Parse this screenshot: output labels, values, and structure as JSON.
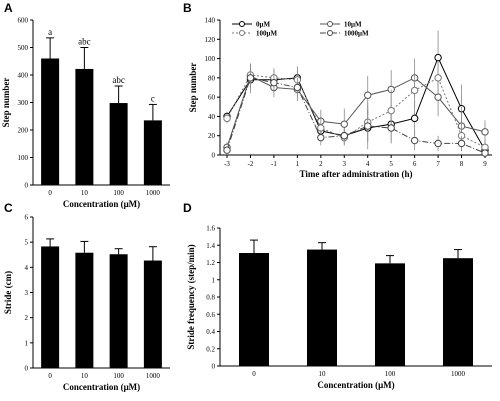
{
  "chart_data": [
    {
      "panel": "A",
      "type": "bar",
      "categories": [
        "0",
        "10",
        "100",
        "1000"
      ],
      "values": [
        460,
        422,
        298,
        235
      ],
      "errors": [
        75,
        78,
        62,
        58
      ],
      "annotations": [
        "a",
        "abc",
        "abc",
        "c"
      ],
      "xlabel": "Concentration (μM)",
      "ylabel": "Step number",
      "ylim": [
        0,
        600
      ],
      "yticks": [
        "0",
        "100",
        "200",
        "300",
        "400",
        "500",
        "600"
      ],
      "color": "#000000"
    },
    {
      "panel": "B",
      "type": "line",
      "x": [
        "-3",
        "-2",
        "-1",
        "1",
        "2",
        "3",
        "4",
        "5",
        "6",
        "7",
        "8",
        "9"
      ],
      "series": [
        {
          "name": "0μM",
          "style": "solid-circle",
          "values": [
            40,
            78,
            78,
            80,
            25,
            20,
            28,
            32,
            38,
            101,
            48,
            5
          ],
          "errors": [
            5,
            14,
            10,
            12,
            10,
            10,
            22,
            20,
            18,
            28,
            25,
            10
          ]
        },
        {
          "name": "10μM",
          "style": "solid-gray",
          "values": [
            8,
            82,
            70,
            68,
            35,
            32,
            62,
            68,
            80,
            60,
            30,
            24
          ],
          "errors": [
            5,
            12,
            10,
            12,
            12,
            16,
            20,
            20,
            20,
            20,
            20,
            12
          ]
        },
        {
          "name": "100μM",
          "style": "dotted",
          "values": [
            38,
            83,
            80,
            78,
            28,
            18,
            34,
            46,
            67,
            80,
            20,
            8
          ],
          "errors": [
            5,
            12,
            10,
            10,
            10,
            8,
            20,
            22,
            18,
            16,
            16,
            8
          ]
        },
        {
          "name": "1000μM",
          "style": "dash-dot",
          "values": [
            5,
            80,
            75,
            70,
            18,
            20,
            30,
            28,
            15,
            12,
            12,
            2
          ],
          "errors": [
            3,
            10,
            8,
            10,
            8,
            8,
            16,
            14,
            10,
            8,
            8,
            4
          ]
        }
      ],
      "xlabel": "Time after administration (h)",
      "ylabel": "Step number",
      "ylim": [
        0,
        140
      ],
      "yticks": [
        "0",
        "20",
        "40",
        "60",
        "80",
        "100",
        "120",
        "140"
      ]
    },
    {
      "panel": "C",
      "type": "bar",
      "categories": [
        "0",
        "10",
        "100",
        "1000"
      ],
      "values": [
        4.83,
        4.58,
        4.52,
        4.27
      ],
      "errors": [
        0.3,
        0.45,
        0.22,
        0.55
      ],
      "xlabel": "Concentration (μM)",
      "ylabel": "Stride (cm)",
      "ylim": [
        0,
        6
      ],
      "yticks": [
        "0",
        "1",
        "2",
        "3",
        "4",
        "5",
        "6"
      ],
      "color": "#000000"
    },
    {
      "panel": "D",
      "type": "bar",
      "categories": [
        "0",
        "10",
        "100",
        "1000"
      ],
      "values": [
        1.31,
        1.35,
        1.19,
        1.25
      ],
      "errors": [
        0.15,
        0.08,
        0.09,
        0.1
      ],
      "xlabel": "Concentration (μM)",
      "ylabel": "Stride frequency (step/min)",
      "ylim": [
        0,
        1.6
      ],
      "yticks": [
        "0",
        "0.2",
        "0.4",
        "0.6",
        "0.8",
        "1",
        "1.2",
        "1.4",
        "1.6"
      ],
      "color": "#000000"
    }
  ]
}
